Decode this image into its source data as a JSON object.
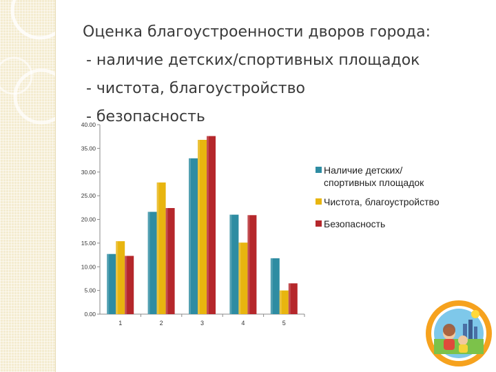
{
  "title": {
    "line1": "Оценка благоустроенности дворов города:",
    "line2": "- наличие детских/спортивных площадок",
    "line3": "- чистота, благоустройство",
    "line4": "- безопасность"
  },
  "colors": {
    "series1": "#2e8ca2",
    "series2": "#e8b50f",
    "series3": "#b5272b",
    "side_panel": "#f4ecd0",
    "axis": "#8a8a8a"
  },
  "chart_data": {
    "type": "bar",
    "categories": [
      "1",
      "2",
      "3",
      "4",
      "5"
    ],
    "series": [
      {
        "name": "Наличие детских/спортивных площадок",
        "values": [
          12.7,
          21.6,
          32.9,
          21.0,
          11.8
        ]
      },
      {
        "name": "Чистота, благоустройство",
        "values": [
          15.4,
          27.8,
          36.8,
          15.1,
          5.0
        ]
      },
      {
        "name": "Безопасность",
        "values": [
          12.3,
          22.4,
          37.6,
          20.9,
          6.5
        ]
      }
    ],
    "y_ticks": [
      "0.00",
      "5.00",
      "10.00",
      "15.00",
      "20.00",
      "25.00",
      "30.00",
      "35.00",
      "40.00"
    ],
    "ylim": [
      0,
      40
    ],
    "grid": false,
    "legend": "right"
  },
  "legend": {
    "item1": "Наличие детских/спортивных площадок",
    "item2": "Чистота, благоустройство",
    "item3": "Безопасность"
  },
  "badge_icon": "children-logo-icon"
}
